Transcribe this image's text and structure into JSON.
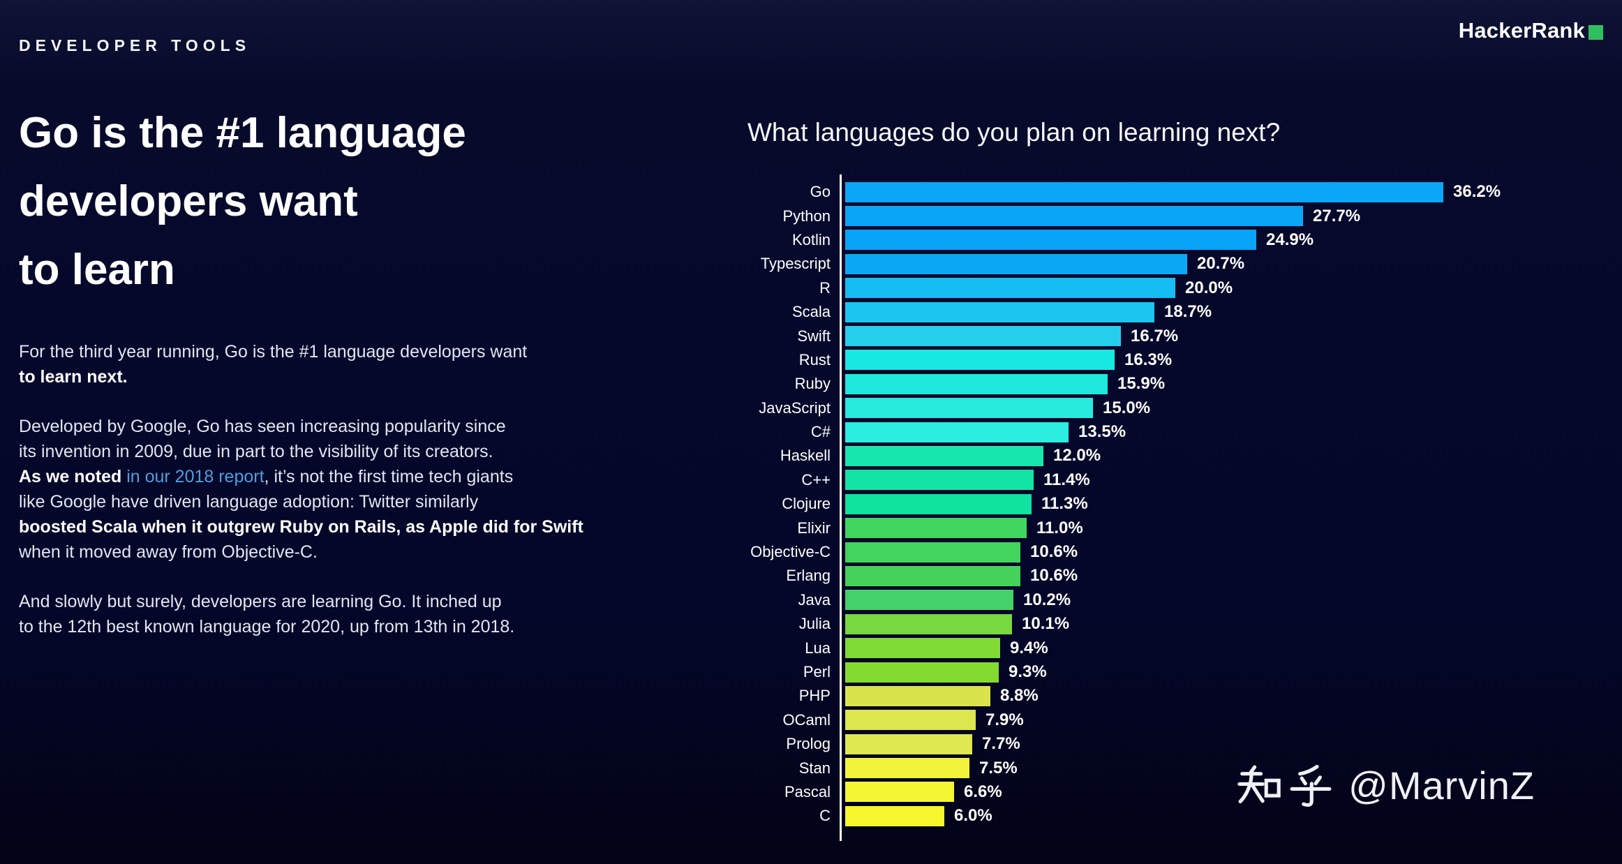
{
  "page": {
    "eyebrow": "DEVELOPER TOOLS",
    "logo": {
      "text": "HackerRank",
      "accent_color": "#30bf60"
    },
    "headline_lines": [
      "Go is the #1 language",
      "developers want",
      "to learn"
    ],
    "paragraphs": [
      [
        {
          "text": "For the third year running, Go is the #1 language developers want\n",
          "style": "normal"
        },
        {
          "text": "to learn next.",
          "style": "bold"
        }
      ],
      [
        {
          "text": "Developed by Google, Go has seen increasing popularity since\nits invention in 2009, due in part to the visibility of its creators.\n",
          "style": "normal"
        },
        {
          "text": "As we noted ",
          "style": "bold"
        },
        {
          "text": "in our 2018 report",
          "style": "link"
        },
        {
          "text": ", it’s not the first time tech giants\nlike Google have driven language adoption: Twitter similarly\n",
          "style": "normal"
        },
        {
          "text": "boosted Scala when it outgrew Ruby on Rails, as Apple did for Swift",
          "style": "bold"
        },
        {
          "text": "\nwhen it moved away from Objective-C.",
          "style": "normal"
        }
      ],
      [
        {
          "text": "And slowly but surely, developers are learning Go. It inched up\nto the 12th best known language for 2020, up from 13th in 2018.",
          "style": "normal"
        }
      ]
    ],
    "link_color": "#4f9edb",
    "watermark": {
      "prefix": "知乎",
      "handle": "@MarvinZ"
    }
  },
  "chart_data": {
    "type": "bar",
    "orientation": "horizontal",
    "title": "What languages do you plan on learning next?",
    "unit": "%",
    "xlim": [
      0,
      38.5
    ],
    "grid": false,
    "legend": false,
    "categories": [
      "Go",
      "Python",
      "Kotlin",
      "Typescript",
      "R",
      "Scala",
      "Swift",
      "Rust",
      "Ruby",
      "JavaScript",
      "C#",
      "Haskell",
      "C++",
      "Clojure",
      "Elixir",
      "Objective-C",
      "Erlang",
      "Java",
      "Julia",
      "Lua",
      "Perl",
      "PHP",
      "OCaml",
      "Prolog",
      "Stan",
      "Pascal",
      "C"
    ],
    "values": [
      36.2,
      27.7,
      24.9,
      20.7,
      20.0,
      18.7,
      16.7,
      16.3,
      15.9,
      15.0,
      13.5,
      12.0,
      11.4,
      11.3,
      11.0,
      10.6,
      10.6,
      10.2,
      10.1,
      9.4,
      9.3,
      8.8,
      7.9,
      7.7,
      7.5,
      6.6,
      6.0
    ],
    "value_labels": [
      "36.2%",
      "27.7%",
      "24.9%",
      "20.7%",
      "20.0%",
      "18.7%",
      "16.7%",
      "16.3%",
      "15.9%",
      "15.0%",
      "13.5%",
      "12.0%",
      "11.4%",
      "11.3%",
      "11.0%",
      "10.6%",
      "10.6%",
      "10.2%",
      "10.1%",
      "9.4%",
      "9.3%",
      "8.8%",
      "7.9%",
      "7.7%",
      "7.5%",
      "6.6%",
      "6.0%"
    ],
    "bar_colors": [
      "#0ba6f7",
      "#0aa5f6",
      "#07a4f8",
      "#0ca8f3",
      "#15bdf2",
      "#1cc5ef",
      "#25cfeb",
      "#17e9e1",
      "#20e8dc",
      "#28ebdd",
      "#2dece0",
      "#18e6af",
      "#11e4a5",
      "#0fe39f",
      "#40d660",
      "#43d45d",
      "#45d25a",
      "#45d169",
      "#77d83f",
      "#82da34",
      "#85da31",
      "#d9e44c",
      "#dce64f",
      "#dfe851",
      "#f2f43b",
      "#f4f633",
      "#f6f72c"
    ],
    "axis_color": "#ffffff"
  }
}
